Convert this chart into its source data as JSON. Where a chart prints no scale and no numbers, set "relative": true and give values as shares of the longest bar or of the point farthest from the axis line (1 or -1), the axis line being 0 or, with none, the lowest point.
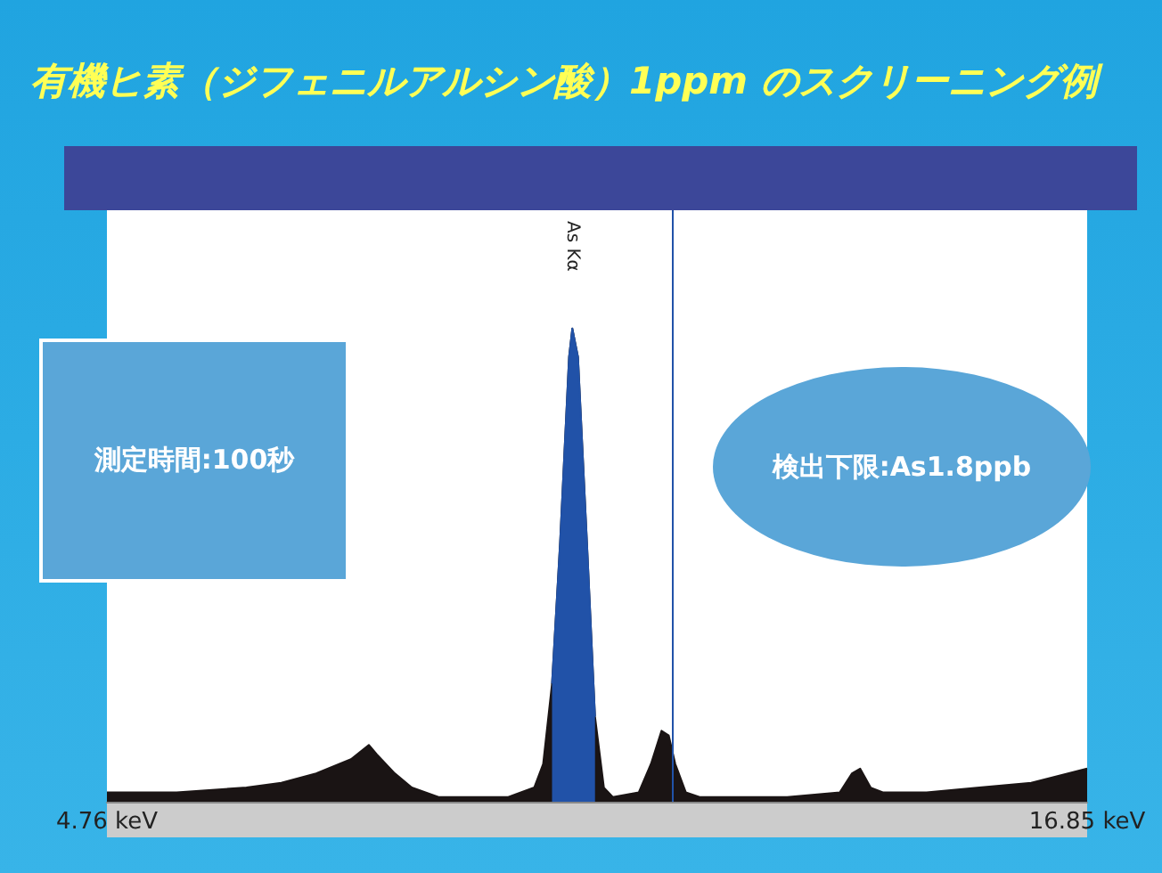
{
  "chart_data": {
    "type": "area",
    "title": "有機ヒ素（ジフェニルアルシン酸）1ppm のスクリーニング例",
    "relative": true,
    "marker": "none",
    "xlim": [
      4.76,
      16.85
    ],
    "xticks": [
      {
        "value": 4.76,
        "label": "4.76 keV"
      },
      {
        "value": 16.85,
        "label": "16.85 keV"
      }
    ],
    "series": [
      {
        "color": "#1a1414",
        "x": [
          4.76,
          5.62,
          6.48,
          6.91,
          7.34,
          7.77,
          7.99,
          8.09,
          8.31,
          8.52,
          8.85,
          9.71,
          10.03,
          10.14,
          10.25,
          10.35,
          10.46,
          10.5,
          10.57,
          10.68,
          10.78,
          10.89,
          11.0,
          11.32,
          11.47,
          11.6,
          11.69,
          11.77,
          11.9,
          12.07,
          13.15,
          13.8,
          13.95,
          14.05,
          14.18,
          14.33,
          14.87,
          15.52,
          16.16,
          16.85
        ],
        "values": [
          0.02,
          0.02,
          0.03,
          0.04,
          0.06,
          0.09,
          0.12,
          0.1,
          0.06,
          0.03,
          0.01,
          0.01,
          0.03,
          0.08,
          0.25,
          0.55,
          0.94,
          1,
          0.94,
          0.55,
          0.18,
          0.03,
          0.01,
          0.02,
          0.08,
          0.15,
          0.14,
          0.08,
          0.02,
          0.01,
          0.01,
          0.02,
          0.06,
          0.07,
          0.03,
          0.02,
          0.02,
          0.03,
          0.04,
          0.07
        ]
      },
      {
        "color": "#2152a8",
        "x": [
          10.25,
          10.35,
          10.46,
          10.5,
          10.57,
          10.68,
          10.78
        ],
        "values": [
          0.25,
          0.55,
          0.94,
          1,
          0.94,
          0.55,
          0.18
        ]
      }
    ],
    "ref_lines": [
      {
        "axis": "x",
        "value": 11.73,
        "color": "#2152a8"
      }
    ],
    "annotations": [
      "測定時間:100秒",
      "検出下限:As1.8ppb",
      "As Kα"
    ]
  }
}
